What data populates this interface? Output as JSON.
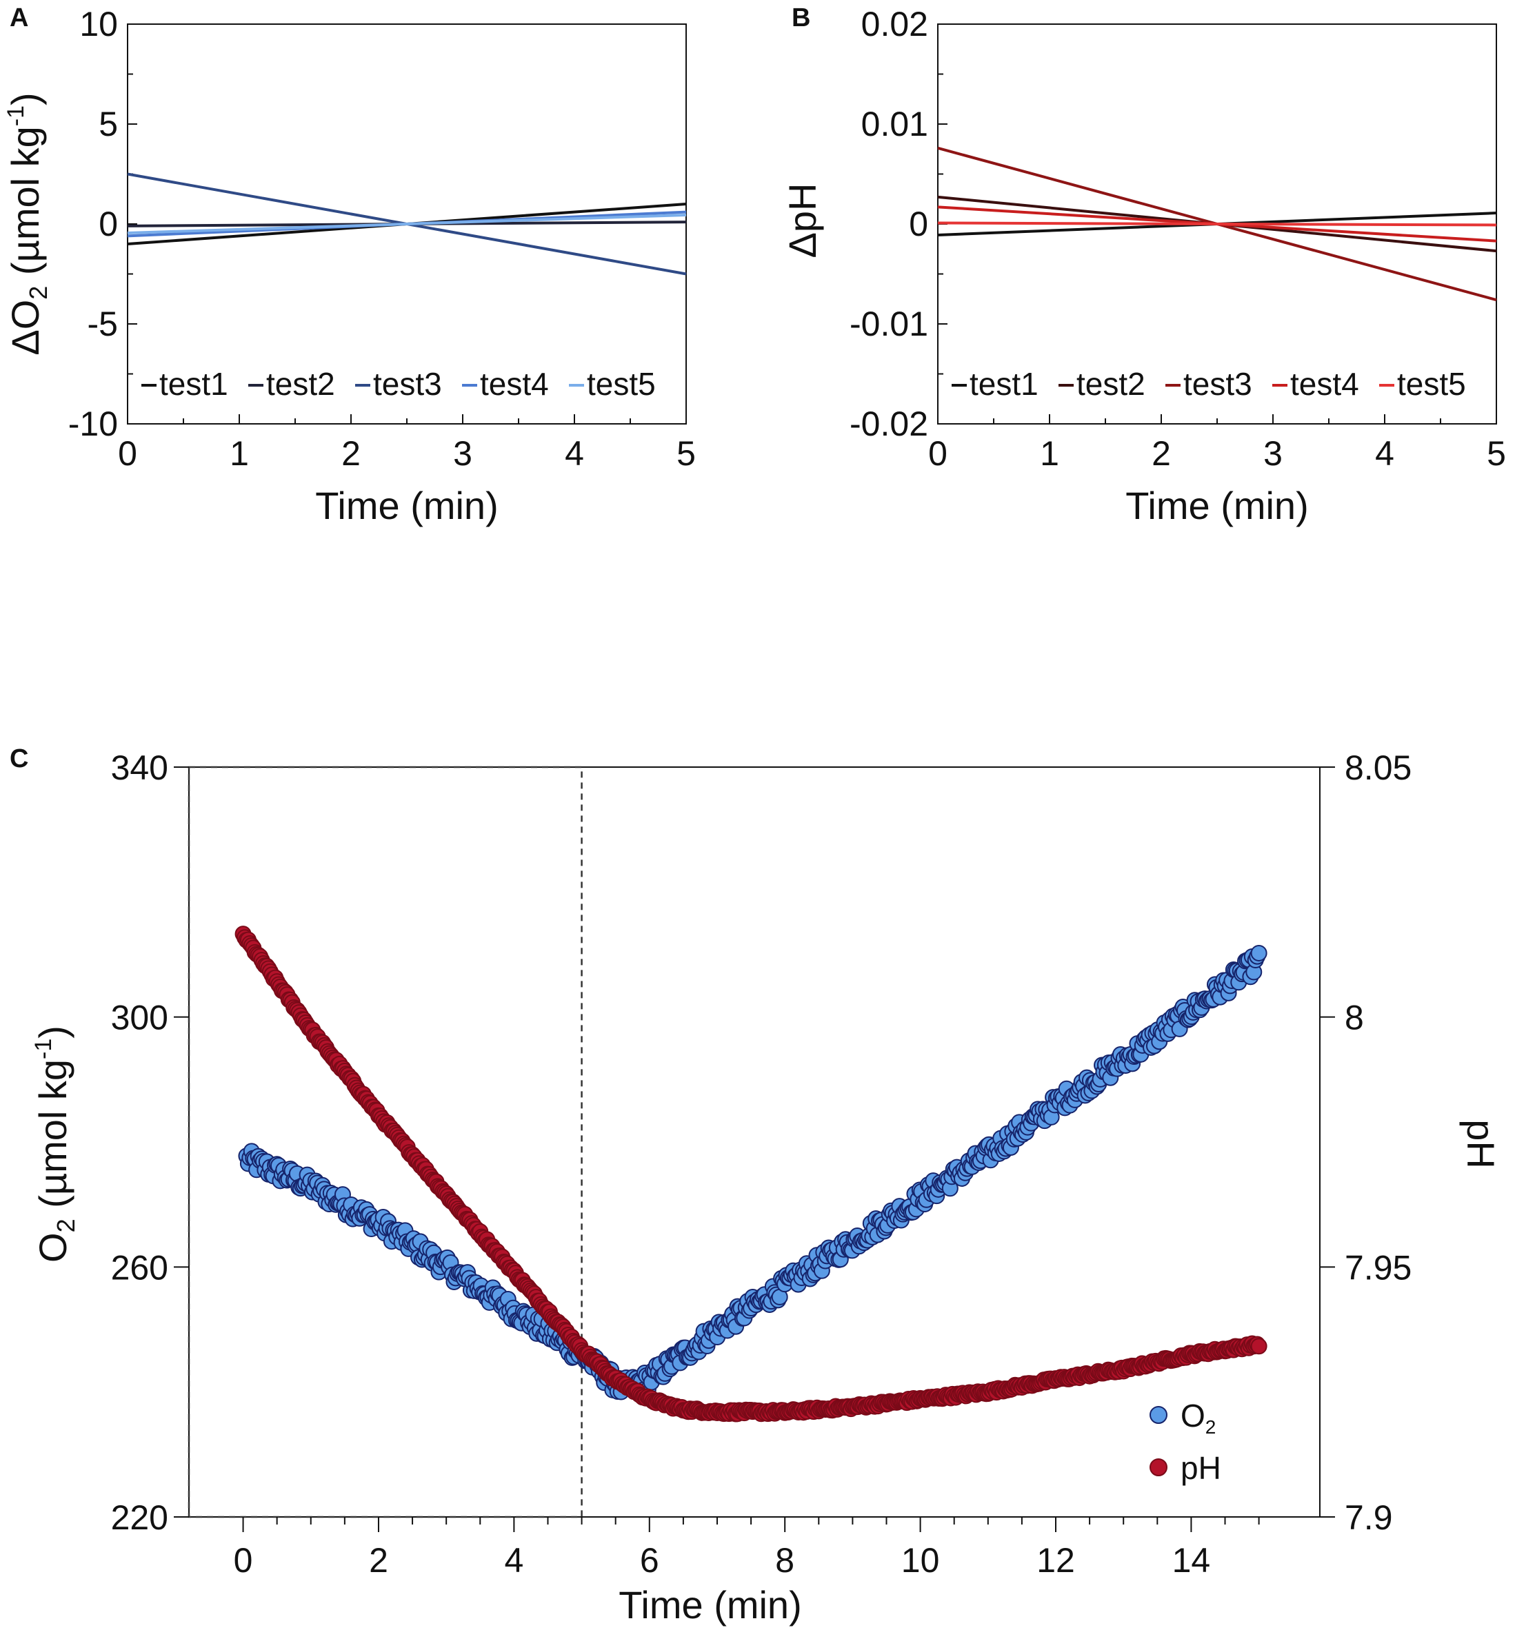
{
  "chart_data": [
    {
      "panel": "A",
      "type": "line",
      "xlabel": "Time (min)",
      "ylabel_main": "ΔO",
      "ylabel_sub": "2",
      "ylabel_rest": " (µmol kg",
      "ylabel_sup": "-1",
      "ylabel_close": ")",
      "xlim": [
        0,
        5
      ],
      "ylim": [
        -10,
        10
      ],
      "xticks": [
        "0",
        "1",
        "2",
        "3",
        "4",
        "5"
      ],
      "yticks": [
        "10",
        "5",
        "0",
        "-5",
        "-10"
      ],
      "legend_position": "bottom",
      "series": [
        {
          "name": "test1",
          "color": "#111111",
          "x": [
            0,
            5
          ],
          "y": [
            -1.0,
            1.0
          ]
        },
        {
          "name": "test2",
          "color": "#22243a",
          "x": [
            0,
            5
          ],
          "y": [
            -0.1,
            0.1
          ]
        },
        {
          "name": "test3",
          "color": "#2f4a86",
          "x": [
            0,
            5
          ],
          "y": [
            2.5,
            -2.5
          ]
        },
        {
          "name": "test4",
          "color": "#4c7bd1",
          "x": [
            0,
            5
          ],
          "y": [
            -0.6,
            0.6
          ]
        },
        {
          "name": "test5",
          "color": "#7aaeea",
          "x": [
            0,
            5
          ],
          "y": [
            -0.45,
            0.45
          ]
        }
      ]
    },
    {
      "panel": "B",
      "type": "line",
      "xlabel": "Time (min)",
      "ylabel": "ΔpH",
      "xlim": [
        0,
        5
      ],
      "ylim": [
        -0.02,
        0.02
      ],
      "xticks": [
        "0",
        "1",
        "2",
        "3",
        "4",
        "5"
      ],
      "yticks": [
        "0.02",
        "0.01",
        "0",
        "-0.01",
        "-0.02"
      ],
      "legend_position": "bottom",
      "series": [
        {
          "name": "test1",
          "color": "#111111",
          "x": [
            0,
            5
          ],
          "y": [
            -0.0011,
            0.0011
          ]
        },
        {
          "name": "test2",
          "color": "#3a0f0f",
          "x": [
            0,
            5
          ],
          "y": [
            0.0027,
            -0.0027
          ]
        },
        {
          "name": "test3",
          "color": "#8e1515",
          "x": [
            0,
            5
          ],
          "y": [
            0.0076,
            -0.0076
          ]
        },
        {
          "name": "test4",
          "color": "#c81e1e",
          "x": [
            0,
            5
          ],
          "y": [
            0.0017,
            -0.0017
          ]
        },
        {
          "name": "test5",
          "color": "#e53434",
          "x": [
            0,
            5
          ],
          "y": [
            0.0001,
            -0.0001
          ]
        }
      ]
    },
    {
      "panel": "C",
      "type": "scatter",
      "xlabel": "Time (min)",
      "ylabel_left_main": "O",
      "ylabel_left_sub": "2",
      "ylabel_left_rest": " (µmol kg",
      "ylabel_left_sup": "-1",
      "ylabel_left_close": ")",
      "ylabel_right": "pH",
      "xlim": [
        -0.8,
        15.9
      ],
      "ylim_left": [
        220,
        340
      ],
      "ylim_right": [
        7.9,
        8.05
      ],
      "xticks": [
        "0",
        "2",
        "4",
        "6",
        "8",
        "10",
        "12",
        "14"
      ],
      "yticks_left": [
        "340",
        "300",
        "260",
        "220"
      ],
      "yticks_right": [
        "8.05",
        "8",
        "7.95",
        "7.9"
      ],
      "dashed_box": {
        "x0": -0.8,
        "x1": 5,
        "y0": 220,
        "y1": 340
      },
      "legend_position": "bottom-right",
      "series": [
        {
          "name": "O2",
          "legend_main": "O",
          "legend_sub": "2",
          "color": "#5b9be6",
          "edge": "#16246b",
          "axis": "left",
          "x_start": 0.05,
          "x_end": 15.0,
          "breakpoints": [
            {
              "t": 0.0,
              "v": 277.5
            },
            {
              "t": 1.0,
              "v": 273.0
            },
            {
              "t": 2.0,
              "v": 267.0
            },
            {
              "t": 3.0,
              "v": 260.0
            },
            {
              "t": 4.0,
              "v": 253.0
            },
            {
              "t": 5.0,
              "v": 246.0
            },
            {
              "t": 5.6,
              "v": 240.5
            },
            {
              "t": 6.0,
              "v": 242.0
            },
            {
              "t": 7.0,
              "v": 250.0
            },
            {
              "t": 8.0,
              "v": 257.0
            },
            {
              "t": 9.0,
              "v": 264.0
            },
            {
              "t": 10.0,
              "v": 271.0
            },
            {
              "t": 11.0,
              "v": 278.0
            },
            {
              "t": 12.0,
              "v": 286.0
            },
            {
              "t": 13.0,
              "v": 293.0
            },
            {
              "t": 14.0,
              "v": 301.0
            },
            {
              "t": 15.0,
              "v": 309.0
            }
          ],
          "noise": 1.6
        },
        {
          "name": "pH",
          "legend_main": "pH",
          "color": "#b3122a",
          "edge": "#7a0a18",
          "axis": "right",
          "x_start": 0.0,
          "x_end": 15.0,
          "breakpoints": [
            {
              "t": 0.0,
              "v": 8.0165
            },
            {
              "t": 1.0,
              "v": 7.9975
            },
            {
              "t": 2.0,
              "v": 7.9805
            },
            {
              "t": 3.0,
              "v": 7.9645
            },
            {
              "t": 4.0,
              "v": 7.949
            },
            {
              "t": 5.0,
              "v": 7.9335
            },
            {
              "t": 5.5,
              "v": 7.9275
            },
            {
              "t": 6.0,
              "v": 7.9235
            },
            {
              "t": 6.5,
              "v": 7.9215
            },
            {
              "t": 7.0,
              "v": 7.921
            },
            {
              "t": 8.0,
              "v": 7.921
            },
            {
              "t": 9.0,
              "v": 7.922
            },
            {
              "t": 10.0,
              "v": 7.9235
            },
            {
              "t": 11.0,
              "v": 7.925
            },
            {
              "t": 12.0,
              "v": 7.9275
            },
            {
              "t": 13.0,
              "v": 7.9295
            },
            {
              "t": 14.0,
              "v": 7.9325
            },
            {
              "t": 15.0,
              "v": 7.9345
            }
          ],
          "noise": 0.0004
        }
      ]
    }
  ]
}
